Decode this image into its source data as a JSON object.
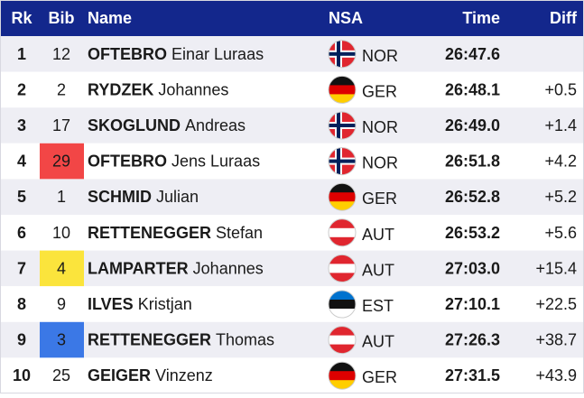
{
  "header": {
    "rank": "Rk",
    "bib": "Bib",
    "name": "Name",
    "nsa": "NSA",
    "time": "Time",
    "diff": "Diff"
  },
  "table": {
    "rows": [
      {
        "rank": 1,
        "bib": 12,
        "surname": "OFTEBRO",
        "given": "Einar Luraas",
        "nsa": "NOR",
        "time": "26:47.6",
        "diff": null,
        "bib_color": null
      },
      {
        "rank": 2,
        "bib": 2,
        "surname": "RYDZEK",
        "given": "Johannes",
        "nsa": "GER",
        "time": "26:48.1",
        "diff": "+0.5",
        "bib_color": null
      },
      {
        "rank": 3,
        "bib": 17,
        "surname": "SKOGLUND",
        "given": "Andreas",
        "nsa": "NOR",
        "time": "26:49.0",
        "diff": "+1.4",
        "bib_color": null
      },
      {
        "rank": 4,
        "bib": 29,
        "surname": "OFTEBRO",
        "given": "Jens Luraas",
        "nsa": "NOR",
        "time": "26:51.8",
        "diff": "+4.2",
        "bib_color": "#f24646"
      },
      {
        "rank": 5,
        "bib": 1,
        "surname": "SCHMID",
        "given": "Julian",
        "nsa": "GER",
        "time": "26:52.8",
        "diff": "+5.2",
        "bib_color": null
      },
      {
        "rank": 6,
        "bib": 10,
        "surname": "RETTENEGGER",
        "given": "Stefan",
        "nsa": "AUT",
        "time": "26:53.2",
        "diff": "+5.6",
        "bib_color": null
      },
      {
        "rank": 7,
        "bib": 4,
        "surname": "LAMPARTER",
        "given": "Johannes",
        "nsa": "AUT",
        "time": "27:03.0",
        "diff": "+15.4",
        "bib_color": "#fbe43c"
      },
      {
        "rank": 8,
        "bib": 9,
        "surname": "ILVES",
        "given": "Kristjan",
        "nsa": "EST",
        "time": "27:10.1",
        "diff": "+22.5",
        "bib_color": null
      },
      {
        "rank": 9,
        "bib": 3,
        "surname": "RETTENEGGER",
        "given": "Thomas",
        "nsa": "AUT",
        "time": "27:26.3",
        "diff": "+38.7",
        "bib_color": "#3b78e6"
      },
      {
        "rank": 10,
        "bib": 25,
        "surname": "GEIGER",
        "given": "Vinzenz",
        "nsa": "GER",
        "time": "27:31.5",
        "diff": "+43.9",
        "bib_color": null
      }
    ]
  }
}
